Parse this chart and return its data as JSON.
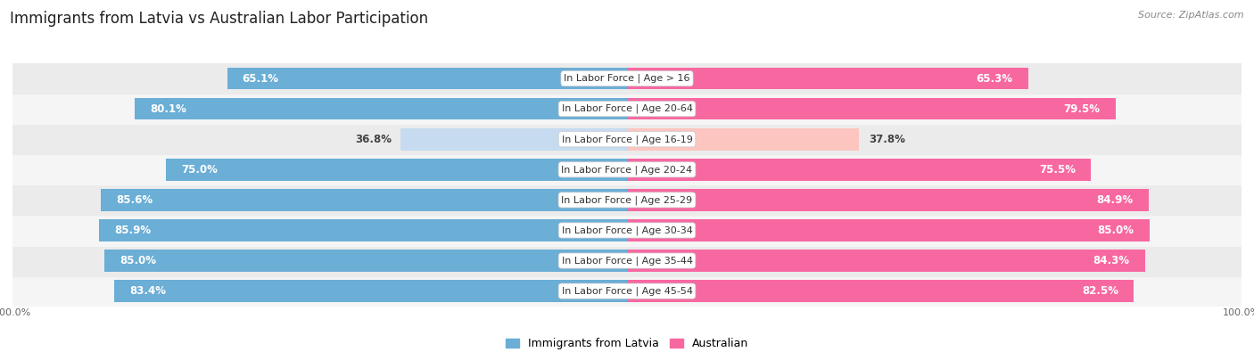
{
  "title": "Immigrants from Latvia vs Australian Labor Participation",
  "source": "Source: ZipAtlas.com",
  "categories": [
    "In Labor Force | Age > 16",
    "In Labor Force | Age 20-64",
    "In Labor Force | Age 16-19",
    "In Labor Force | Age 20-24",
    "In Labor Force | Age 25-29",
    "In Labor Force | Age 30-34",
    "In Labor Force | Age 35-44",
    "In Labor Force | Age 45-54"
  ],
  "latvia_values": [
    65.1,
    80.1,
    36.8,
    75.0,
    85.6,
    85.9,
    85.0,
    83.4
  ],
  "australia_values": [
    65.3,
    79.5,
    37.8,
    75.5,
    84.9,
    85.0,
    84.3,
    82.5
  ],
  "latvia_color_strong": "#6baed6",
  "latvia_color_light": "#c6dbef",
  "australia_color_strong": "#f768a1",
  "australia_color_light": "#fcc5c0",
  "row_bg_even": "#f5f5f5",
  "row_bg_odd": "#ebebeb",
  "legend_latvia": "Immigrants from Latvia",
  "legend_australia": "Australian",
  "threshold_strong": 50.0,
  "max_val": 100.0,
  "bar_height": 0.72,
  "label_fontsize": 8.5,
  "title_fontsize": 12,
  "category_fontsize": 8,
  "value_text_dark": "#444444",
  "value_text_light": "#ffffff"
}
